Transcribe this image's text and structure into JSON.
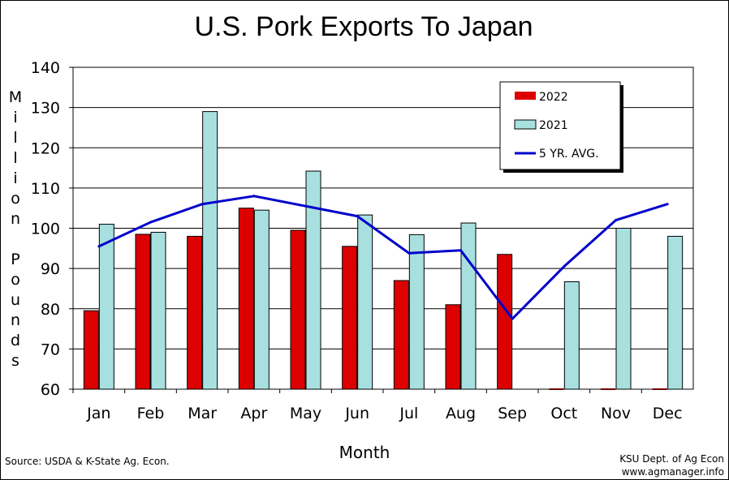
{
  "chart_data": {
    "type": "bar",
    "title": "U.S. Pork Exports To Japan",
    "xlabel": "Month",
    "ylabel": "Million Pounds",
    "ylim": [
      60,
      140
    ],
    "yticks": [
      60,
      70,
      80,
      90,
      100,
      110,
      120,
      130,
      140
    ],
    "grid": true,
    "legend_position": "top-right",
    "categories": [
      "Jan",
      "Feb",
      "Mar",
      "Apr",
      "May",
      "Jun",
      "Jul",
      "Aug",
      "Sep",
      "Oct",
      "Nov",
      "Dec"
    ],
    "series": [
      {
        "name": "2022",
        "type": "bar",
        "color": "#dd0000",
        "values": [
          79.5,
          98.5,
          98,
          105,
          99.5,
          95.5,
          87,
          81,
          93.5,
          null,
          null,
          null
        ]
      },
      {
        "name": "2021",
        "type": "bar",
        "color": "#a8e0e0",
        "values": [
          101,
          99,
          129,
          104.5,
          114.2,
          103.3,
          98.4,
          101.3,
          null,
          86.7,
          100,
          98
        ]
      },
      {
        "name": "5 YR. AVG.",
        "type": "line",
        "color": "#0000cc",
        "values": [
          95.5,
          101.5,
          106,
          108,
          105.5,
          103,
          93.8,
          94.5,
          77.5,
          90.5,
          102,
          106
        ]
      }
    ]
  },
  "footer": {
    "source": "Source:  USDA & K-State Ag. Econ.",
    "credit_line1": "KSU Dept. of Ag Econ",
    "credit_line2": "www.agmanager.info"
  }
}
